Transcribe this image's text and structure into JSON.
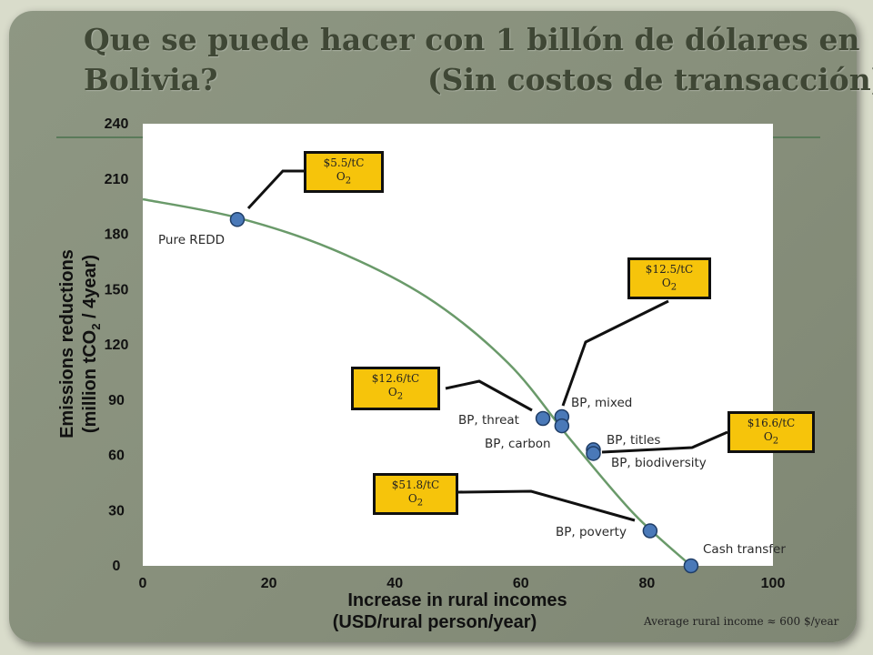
{
  "slide": {
    "title_line1": "Que se puede hacer con 1 billón de dólares en",
    "title_line2a": "Bolivia?",
    "title_line2b": "(Sin costos de transacción)",
    "footnote": "Average rural income ≈ 600 $/year"
  },
  "chart_data": {
    "type": "scatter",
    "xlabel_line1": "Increase in rural incomes",
    "xlabel_line2": "(USD/rural person/year)",
    "ylabel_line1": "Emissions reductions",
    "ylabel_line2_pre": "(million tCO",
    "ylabel_line2_sub": "2",
    "ylabel_line2_post": " / 4year)",
    "xlim": [
      0,
      100
    ],
    "ylim": [
      0,
      240
    ],
    "x_ticks": [
      "0",
      "20",
      "40",
      "60",
      "80",
      "100"
    ],
    "y_ticks": [
      "0",
      "30",
      "60",
      "90",
      "120",
      "150",
      "180",
      "210",
      "240"
    ],
    "grid": false,
    "curve_color": "#6a9a6a",
    "marker_color": "#4a79b8",
    "frontier_curve": [
      [
        0,
        199
      ],
      [
        15,
        189
      ],
      [
        30,
        172
      ],
      [
        45,
        146
      ],
      [
        58,
        110
      ],
      [
        68,
        68
      ],
      [
        78,
        28
      ],
      [
        87,
        0
      ]
    ],
    "points": [
      {
        "label": "Pure REDD",
        "x": 15,
        "y": 188
      },
      {
        "label": "BP, mixed",
        "x": 66.5,
        "y": 81
      },
      {
        "label": "BP, threat",
        "x": 63.5,
        "y": 80
      },
      {
        "label": "BP, carbon",
        "x": 66.5,
        "y": 76
      },
      {
        "label": "BP, titles",
        "x": 71.5,
        "y": 63
      },
      {
        "label": "BP, biodiversity",
        "x": 71.5,
        "y": 61
      },
      {
        "label": "BP, poverty",
        "x": 80.5,
        "y": 19
      },
      {
        "label": "Cash transfer",
        "x": 87,
        "y": 0
      }
    ],
    "price_callouts": [
      {
        "line1": "$5.5/tC",
        "line2_pre": "O",
        "line2_sub": "2"
      },
      {
        "line1": "$12.5/tC",
        "line2_pre": "O",
        "line2_sub": "2"
      },
      {
        "line1": "$12.6/tC",
        "line2_pre": "O",
        "line2_sub": "2"
      },
      {
        "line1": "$16.6/tC",
        "line2_pre": "O",
        "line2_sub": "2"
      },
      {
        "line1": "$51.8/tC",
        "line2_pre": "O",
        "line2_sub": "2"
      }
    ]
  }
}
